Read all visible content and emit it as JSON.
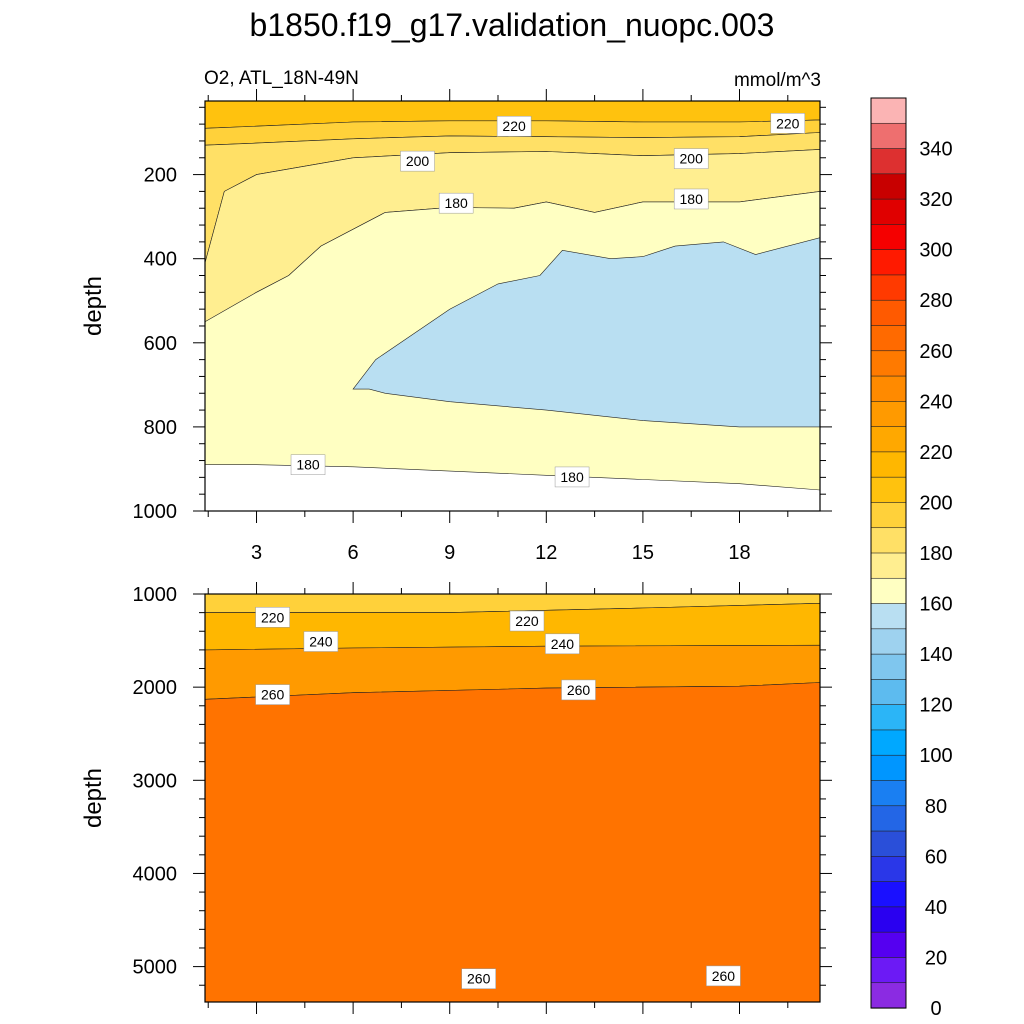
{
  "title": "b1850.f19_g17.validation_nuopc.003",
  "subtitle_left": "O2, ATL_18N-49N",
  "subtitle_right": "mmol/m^3",
  "chart_data": [
    {
      "type": "contour",
      "panel": "upper",
      "ylabel": "depth",
      "xlabel": "",
      "x_ticks": [
        3,
        6,
        9,
        12,
        15,
        18
      ],
      "xlim": [
        1.4,
        20.5
      ],
      "y_ticks": [
        200,
        400,
        600,
        800,
        1000
      ],
      "ylim": [
        25,
        1000
      ],
      "y_inverted": true,
      "regions": [
        {
          "level": "220-230",
          "color": "#FFC20E",
          "boundary": [
            [
              1.4,
              25
            ],
            [
              20.5,
              25
            ],
            [
              20.5,
              70
            ],
            [
              18,
              75
            ],
            [
              15,
              75
            ],
            [
              12,
              72
            ],
            [
              9,
              72
            ],
            [
              6,
              75
            ],
            [
              3,
              85
            ],
            [
              1.4,
              90
            ]
          ]
        },
        {
          "level": "210-220",
          "color": "#FFD13A",
          "boundary": [
            [
              1.4,
              90
            ],
            [
              3,
              85
            ],
            [
              6,
              75
            ],
            [
              9,
              72
            ],
            [
              12,
              72
            ],
            [
              15,
              75
            ],
            [
              18,
              75
            ],
            [
              20.5,
              70
            ],
            [
              20.5,
              100
            ],
            [
              18,
              110
            ],
            [
              15,
              112
            ],
            [
              12,
              110
            ],
            [
              9,
              108
            ],
            [
              6,
              115
            ],
            [
              3,
              125
            ],
            [
              1.4,
              130
            ]
          ]
        },
        {
          "level": "200-210",
          "color": "#FFE066",
          "boundary": [
            [
              1.4,
              130
            ],
            [
              3,
              125
            ],
            [
              6,
              115
            ],
            [
              9,
              108
            ],
            [
              12,
              110
            ],
            [
              15,
              112
            ],
            [
              18,
              110
            ],
            [
              20.5,
              100
            ],
            [
              20.5,
              140
            ],
            [
              18,
              150
            ],
            [
              15,
              155
            ],
            [
              13.5,
              150
            ],
            [
              12,
              145
            ],
            [
              9,
              148
            ],
            [
              6,
              160
            ],
            [
              3,
              200
            ],
            [
              2,
              240
            ],
            [
              1.4,
              410
            ]
          ]
        },
        {
          "level": "190-200",
          "color": "#FFEE90",
          "boundary": [
            [
              1.4,
              410
            ],
            [
              2,
              240
            ],
            [
              3,
              200
            ],
            [
              6,
              160
            ],
            [
              9,
              148
            ],
            [
              12,
              145
            ],
            [
              13.5,
              150
            ],
            [
              15,
              155
            ],
            [
              18,
              150
            ],
            [
              20.5,
              140
            ],
            [
              20.5,
              240
            ],
            [
              18,
              265
            ],
            [
              15,
              265
            ],
            [
              13.5,
              290
            ],
            [
              12,
              265
            ],
            [
              11,
              280
            ],
            [
              9,
              278
            ],
            [
              7,
              290
            ],
            [
              5,
              370
            ],
            [
              4,
              440
            ],
            [
              3,
              480
            ],
            [
              1.4,
              550
            ]
          ]
        },
        {
          "level": "180-190",
          "color": "#FFFFC2",
          "boundary": [
            [
              1.4,
              550
            ],
            [
              3,
              480
            ],
            [
              4,
              440
            ],
            [
              5,
              370
            ],
            [
              7,
              290
            ],
            [
              9,
              278
            ],
            [
              11,
              280
            ],
            [
              12,
              265
            ],
            [
              13.5,
              290
            ],
            [
              15,
              265
            ],
            [
              18,
              265
            ],
            [
              20.5,
              240
            ],
            [
              20.5,
              950
            ],
            [
              18,
              935
            ],
            [
              15,
              925
            ],
            [
              12,
              915
            ],
            [
              9,
              905
            ],
            [
              6,
              895
            ],
            [
              3,
              890
            ],
            [
              1.4,
              890
            ]
          ]
        },
        {
          "level": "170-180",
          "color": "#B9DFF2",
          "boundary": [
            [
              6,
              710
            ],
            [
              6.7,
              640
            ],
            [
              9,
              520
            ],
            [
              10.5,
              460
            ],
            [
              11.8,
              440
            ],
            [
              12.5,
              380
            ],
            [
              14,
              400
            ],
            [
              15,
              395
            ],
            [
              16,
              370
            ],
            [
              17.5,
              360
            ],
            [
              18.5,
              390
            ],
            [
              20.5,
              350
            ],
            [
              20.5,
              800
            ],
            [
              19,
              800
            ],
            [
              18,
              800
            ],
            [
              15,
              785
            ],
            [
              12,
              760
            ],
            [
              9,
              740
            ],
            [
              7,
              720
            ],
            [
              6.5,
              710
            ]
          ]
        }
      ],
      "contour_labels": [
        {
          "text": "220",
          "x": 11,
          "y": 85
        },
        {
          "text": "220",
          "x": 19.5,
          "y": 78
        },
        {
          "text": "200",
          "x": 8,
          "y": 168
        },
        {
          "text": "200",
          "x": 16.5,
          "y": 162
        },
        {
          "text": "180",
          "x": 9.2,
          "y": 268
        },
        {
          "text": "180",
          "x": 16.5,
          "y": 258
        },
        {
          "text": "180",
          "x": 4.6,
          "y": 890
        },
        {
          "text": "180",
          "x": 12.8,
          "y": 919
        }
      ]
    },
    {
      "type": "contour",
      "panel": "lower",
      "ylabel": "depth",
      "xlabel": "",
      "x_ticks": [
        3,
        6,
        9,
        12,
        15,
        18
      ],
      "xlim": [
        1.4,
        20.5
      ],
      "y_ticks": [
        1000,
        2000,
        3000,
        4000,
        5000
      ],
      "ylim": [
        1000,
        5380
      ],
      "y_inverted": true,
      "regions": [
        {
          "level": "220-230",
          "color": "#FFD13A",
          "boundary": [
            [
              1.4,
              1000
            ],
            [
              20.5,
              1000
            ],
            [
              20.5,
              1100
            ],
            [
              15,
              1150
            ],
            [
              9,
              1200
            ],
            [
              3,
              1200
            ],
            [
              1.4,
              1200
            ]
          ]
        },
        {
          "level": "230-250",
          "color": "#FFB700",
          "boundary": [
            [
              1.4,
              1200
            ],
            [
              3,
              1200
            ],
            [
              9,
              1200
            ],
            [
              15,
              1150
            ],
            [
              20.5,
              1100
            ],
            [
              20.5,
              1550
            ],
            [
              12,
              1560
            ],
            [
              6,
              1580
            ],
            [
              1.4,
              1600
            ]
          ]
        },
        {
          "level": "250-260",
          "color": "#FF9A00",
          "boundary": [
            [
              1.4,
              1600
            ],
            [
              6,
              1580
            ],
            [
              12,
              1560
            ],
            [
              20.5,
              1550
            ],
            [
              20.5,
              1950
            ],
            [
              18,
              1990
            ],
            [
              12,
              2010
            ],
            [
              6,
              2060
            ],
            [
              1.4,
              2130
            ]
          ]
        },
        {
          "level": "260-270",
          "color": "#FF7300",
          "boundary": [
            [
              1.4,
              2130
            ],
            [
              6,
              2060
            ],
            [
              12,
              2010
            ],
            [
              18,
              1990
            ],
            [
              20.5,
              1950
            ],
            [
              20.5,
              5380
            ],
            [
              1.4,
              5380
            ]
          ]
        }
      ],
      "contour_labels": [
        {
          "text": "220",
          "x": 3.5,
          "y": 1250
        },
        {
          "text": "220",
          "x": 11.4,
          "y": 1290
        },
        {
          "text": "240",
          "x": 5,
          "y": 1510
        },
        {
          "text": "240",
          "x": 12.5,
          "y": 1535
        },
        {
          "text": "260",
          "x": 3.5,
          "y": 2080
        },
        {
          "text": "260",
          "x": 13,
          "y": 2030
        },
        {
          "text": "260",
          "x": 9.9,
          "y": 5130
        },
        {
          "text": "260",
          "x": 17.5,
          "y": 5100
        }
      ]
    }
  ],
  "colorbar": {
    "labels": [
      "340",
      "320",
      "300",
      "280",
      "260",
      "240",
      "220",
      "200",
      "180",
      "160",
      "140",
      "120",
      "100",
      "80",
      "60",
      "40",
      "20",
      "0"
    ],
    "colors": [
      "#FBB4B4",
      "#EE6F6F",
      "#DD3030",
      "#C80000",
      "#E00000",
      "#F50000",
      "#FF1A00",
      "#FF3A00",
      "#FF5A00",
      "#FF6A00",
      "#FF7A00",
      "#FF8A00",
      "#FF9A00",
      "#FFA800",
      "#FFB700",
      "#FFC20E",
      "#FFD13A",
      "#FFE066",
      "#FFEE90",
      "#FFFFC2",
      "#B9DFF2",
      "#9ED2EF",
      "#7FC6EE",
      "#5DBBEF",
      "#2BB5F7",
      "#00A8FF",
      "#0096FF",
      "#1A7FF2",
      "#2366E6",
      "#2A4FD9",
      "#2A37E8",
      "#1A10FF",
      "#2A00F0",
      "#5500F0",
      "#6C1AF5",
      "#8B2BE2"
    ]
  }
}
